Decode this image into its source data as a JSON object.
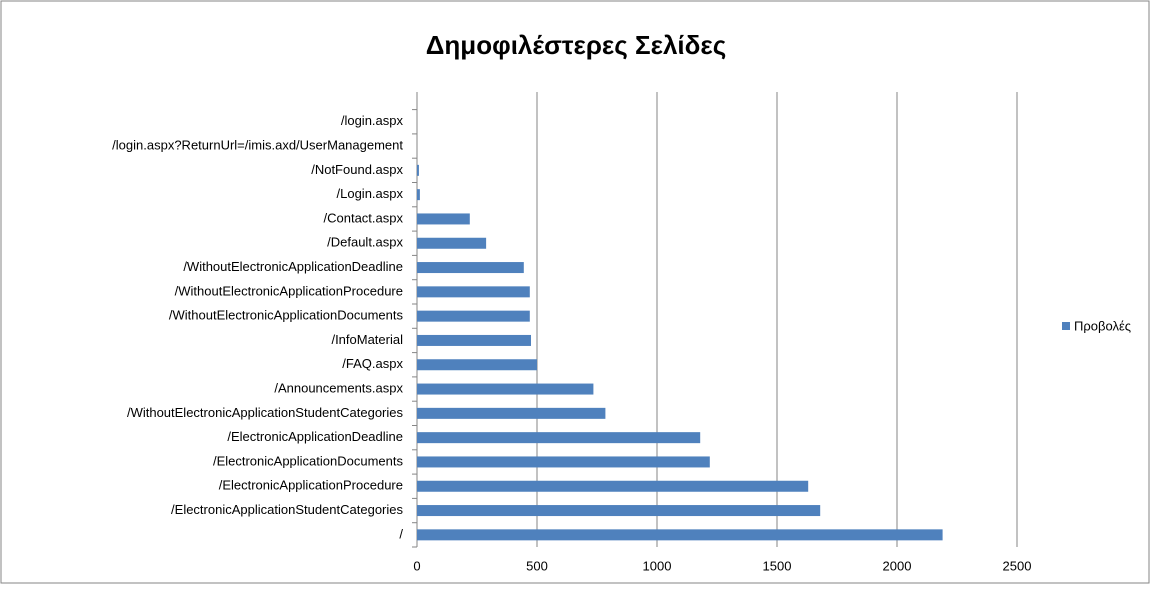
{
  "chart_data": {
    "type": "bar",
    "orientation": "horizontal",
    "title": "Δημοφιλέστερες Σελίδες",
    "categories": [
      "/",
      "/ElectronicApplicationStudentCategories",
      "/ElectronicApplicationProcedure",
      "/ElectronicApplicationDocuments",
      "/ElectronicApplicationDeadline",
      "/WithoutElectronicApplicationStudentCategories",
      "/Announcements.aspx",
      "/FAQ.aspx",
      "/InfoMaterial",
      "/WithoutElectronicApplicationDocuments",
      "/WithoutElectronicApplicationProcedure",
      "/WithoutElectronicApplicationDeadline",
      "/Default.aspx",
      "/Contact.aspx",
      "/Login.aspx",
      "/NotFound.aspx",
      "/login.aspx?ReturnUrl=/imis.axd/UserManagement",
      "/login.aspx"
    ],
    "series": [
      {
        "name": "Προβολές",
        "color": "#4f81bd",
        "values": [
          2190,
          1680,
          1630,
          1220,
          1180,
          785,
          735,
          500,
          475,
          470,
          470,
          445,
          288,
          220,
          12,
          8,
          0,
          0
        ]
      }
    ],
    "xlim": [
      0,
      2500
    ],
    "xticks": [
      0,
      500,
      1000,
      1500,
      2000,
      2500
    ],
    "grid": true,
    "legend": "right"
  }
}
